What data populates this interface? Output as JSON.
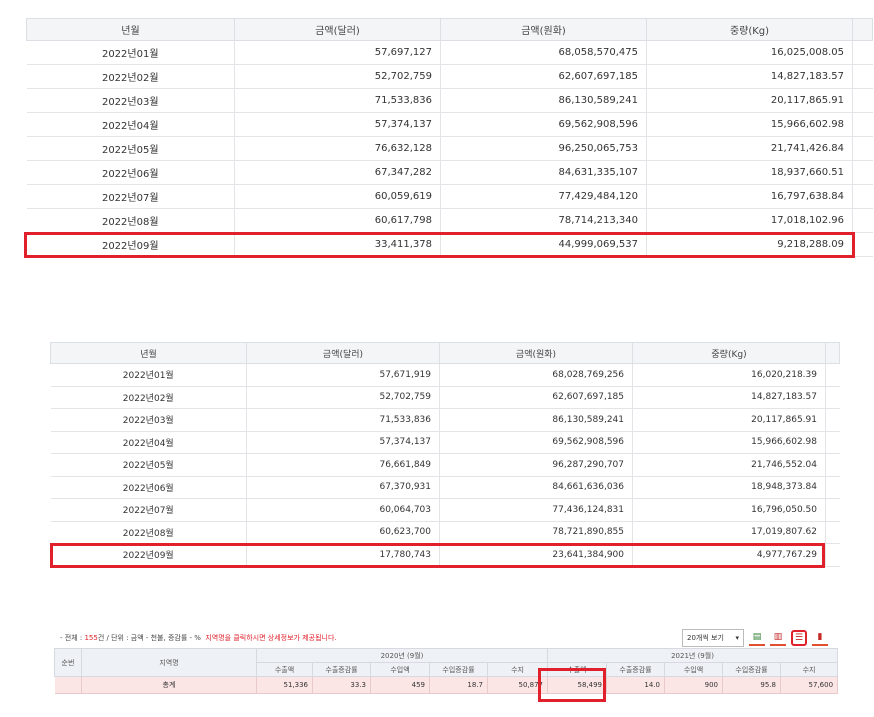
{
  "table1": {
    "headers": [
      "년월",
      "금액(달러)",
      "금액(원화)",
      "중량(Kg)"
    ],
    "rows": [
      [
        "2022년01월",
        "57,697,127",
        "68,058,570,475",
        "16,025,008.05"
      ],
      [
        "2022년02월",
        "52,702,759",
        "62,607,697,185",
        "14,827,183.57"
      ],
      [
        "2022년03월",
        "71,533,836",
        "86,130,589,241",
        "20,117,865.91"
      ],
      [
        "2022년04월",
        "57,374,137",
        "69,562,908,596",
        "15,966,602.98"
      ],
      [
        "2022년05월",
        "76,632,128",
        "96,250,065,753",
        "21,741,426.84"
      ],
      [
        "2022년06월",
        "67,347,282",
        "84,631,335,107",
        "18,937,660.51"
      ],
      [
        "2022년07월",
        "60,059,619",
        "77,429,484,120",
        "16,797,638.84"
      ],
      [
        "2022년08월",
        "60,617,798",
        "78,714,213,340",
        "17,018,102.96"
      ],
      [
        "2022년09월",
        "33,411,378",
        "44,999,069,537",
        "9,218,288.09"
      ]
    ]
  },
  "table2": {
    "headers": [
      "년월",
      "금액(달러)",
      "금액(원화)",
      "중량(Kg)"
    ],
    "rows": [
      [
        "2022년01월",
        "57,671,919",
        "68,028,769,256",
        "16,020,218.39"
      ],
      [
        "2022년02월",
        "52,702,759",
        "62,607,697,185",
        "14,827,183.57"
      ],
      [
        "2022년03월",
        "71,533,836",
        "86,130,589,241",
        "20,117,865.91"
      ],
      [
        "2022년04월",
        "57,374,137",
        "69,562,908,596",
        "15,966,602.98"
      ],
      [
        "2022년05월",
        "76,661,849",
        "96,287,290,707",
        "21,746,552.04"
      ],
      [
        "2022년06월",
        "67,370,931",
        "84,661,636,036",
        "18,948,373.84"
      ],
      [
        "2022년07월",
        "60,064,703",
        "77,436,124,831",
        "16,796,050.50"
      ],
      [
        "2022년08월",
        "60,623,700",
        "78,721,890,855",
        "17,019,807.62"
      ],
      [
        "2022년09월",
        "17,780,743",
        "23,641,384,900",
        "4,977,767.29"
      ]
    ]
  },
  "note": {
    "prefix": "- 전체 : ",
    "count": "155",
    "suffix": "건 / 단위 : 금액 - 천불, 증감률 - %",
    "hint": "지역명을 클릭하시면 상세정보가 제공됩니다."
  },
  "toolbar": {
    "page_size": "20개씩 보기",
    "excel_icon": "excel-download-icon",
    "pdf_icon": "pdf-download-icon",
    "list_icon": "list-view-icon",
    "chart_icon": "chart-view-icon"
  },
  "table3": {
    "col_no": "순번",
    "col_region": "지역명",
    "group1": "2020년 (9월)",
    "group2": "2021년 (9월)",
    "sub_headers": [
      "수출액",
      "수출증감률",
      "수입액",
      "수입증감률",
      "수지"
    ],
    "total_label": "총계",
    "total_2020": [
      "51,336",
      "33.3",
      "459",
      "18.7",
      "50,877"
    ],
    "total_2021": [
      "58,499",
      "14.0",
      "900",
      "95.8",
      "57,600"
    ]
  },
  "colors": {
    "highlight": "#e0202a",
    "header_bg": "#f4f5f7",
    "total_row_bg": "#fbe5e5"
  }
}
